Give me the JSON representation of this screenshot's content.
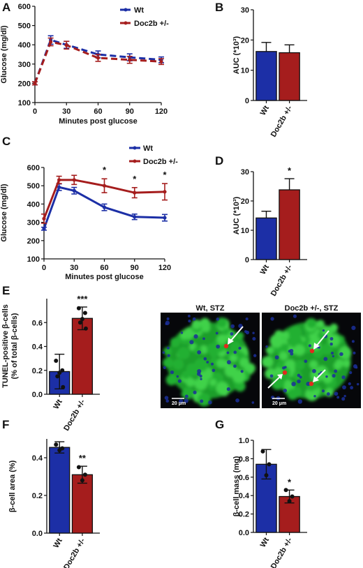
{
  "colors": {
    "wt": "#1c2fa6",
    "het": "#a51d1d",
    "axis": "#111111",
    "micro_bg": "#06070a",
    "micro_green": "#2fc43b",
    "micro_blue": "#1b2f9a"
  },
  "chart_data": [
    {
      "panel": "A",
      "type": "line",
      "x": [
        0,
        15,
        30,
        60,
        90,
        120
      ],
      "series": [
        {
          "name": "Wt",
          "values": [
            200,
            425,
            400,
            350,
            335,
            322
          ],
          "err": [
            8,
            22,
            18,
            18,
            18,
            15
          ],
          "color": "#1c2fa6"
        },
        {
          "name": "Doc2b +/-",
          "values": [
            200,
            415,
            398,
            332,
            322,
            313
          ],
          "err": [
            8,
            20,
            20,
            18,
            18,
            15
          ],
          "color": "#a51d1d"
        }
      ],
      "xlabel": "Minutes post glucose",
      "ylabel": "Glucose (mg/dl)",
      "xticks": [
        0,
        30,
        60,
        90,
        120
      ],
      "yticks": [
        100,
        200,
        300,
        400,
        500,
        600
      ],
      "xlim": [
        0,
        120
      ],
      "ylim": [
        100,
        600
      ],
      "dashed": true,
      "legend": "top-right"
    },
    {
      "panel": "B",
      "type": "bar",
      "categories": [
        "Wt",
        "Doc2b +/-"
      ],
      "values": [
        16.2,
        15.8
      ],
      "err": [
        3.0,
        2.6
      ],
      "colors": [
        "#1c2fa6",
        "#a51d1d"
      ],
      "ylabel": "AUC (*10³)",
      "yticks": [
        0,
        10,
        20,
        30
      ],
      "ylim": [
        0,
        30
      ]
    },
    {
      "panel": "C",
      "type": "line",
      "x": [
        0,
        15,
        30,
        60,
        90,
        120
      ],
      "series": [
        {
          "name": "Wt",
          "values": [
            265,
            492,
            473,
            382,
            330,
            325
          ],
          "err": [
            8,
            18,
            18,
            18,
            15,
            18
          ],
          "color": "#1c2fa6"
        },
        {
          "name": "Doc2b +/-",
          "values": [
            320,
            532,
            532,
            500,
            462,
            467
          ],
          "err": [
            25,
            20,
            25,
            38,
            28,
            45
          ],
          "color": "#a51d1d"
        }
      ],
      "xlabel": "Minutes post glucose",
      "ylabel": "Glucose (mg/dl)",
      "xticks": [
        0,
        30,
        60,
        90,
        120
      ],
      "yticks": [
        100,
        200,
        300,
        400,
        500,
        600
      ],
      "xlim": [
        0,
        120
      ],
      "ylim": [
        100,
        600
      ],
      "dashed": false,
      "legend": "top-right",
      "significance": [
        {
          "x": 60,
          "label": "*"
        },
        {
          "x": 90,
          "label": "*"
        },
        {
          "x": 120,
          "label": "*"
        }
      ]
    },
    {
      "panel": "D",
      "type": "bar",
      "categories": [
        "Wt",
        "Doc2b +/-"
      ],
      "values": [
        14.2,
        23.8
      ],
      "err": [
        2.3,
        3.8
      ],
      "colors": [
        "#1c2fa6",
        "#a51d1d"
      ],
      "ylabel": "AUC (*10³)",
      "yticks": [
        0,
        10,
        20,
        30
      ],
      "ylim": [
        0,
        30
      ],
      "significance": [
        {
          "index": 1,
          "label": "*"
        }
      ]
    },
    {
      "panel": "E",
      "type": "bar",
      "categories": [
        "Wt",
        "Doc2b +/-"
      ],
      "values": [
        0.19,
        0.635
      ],
      "err": [
        0.145,
        0.095
      ],
      "points": [
        [
          0.28,
          0.2,
          0.18,
          0.15,
          0.06
        ],
        [
          0.72,
          0.68,
          0.63,
          0.6,
          0.55
        ]
      ],
      "colors": [
        "#1c2fa6",
        "#a51d1d"
      ],
      "ylabel": "TUNEL-positive β-cells",
      "ylabel2": "(% of total β-cells)",
      "yticks": [
        0.0,
        0.2,
        0.4,
        0.6
      ],
      "ylim": [
        0,
        0.8
      ],
      "significance": [
        {
          "index": 1,
          "label": "***"
        }
      ]
    },
    {
      "panel": "F",
      "type": "bar",
      "categories": [
        "Wt",
        "Doc2b +/-"
      ],
      "values": [
        0.455,
        0.31
      ],
      "err": [
        0.03,
        0.045
      ],
      "points": [
        [
          0.47,
          0.45,
          0.44
        ],
        [
          0.35,
          0.31,
          0.28
        ]
      ],
      "colors": [
        "#1c2fa6",
        "#a51d1d"
      ],
      "ylabel": "β-cell area (%)",
      "yticks": [
        0.0,
        0.2,
        0.4
      ],
      "ylim": [
        0,
        0.5
      ],
      "significance": [
        {
          "index": 1,
          "label": "**"
        }
      ]
    },
    {
      "panel": "G",
      "type": "bar",
      "categories": [
        "Wt",
        "Doc2b +/-"
      ],
      "values": [
        0.74,
        0.39
      ],
      "err": [
        0.16,
        0.07
      ],
      "points": [
        [
          0.88,
          0.74,
          0.62
        ],
        [
          0.46,
          0.39,
          0.34
        ]
      ],
      "colors": [
        "#1c2fa6",
        "#a51d1d"
      ],
      "ylabel": "β-cell mass (mg)",
      "yticks": [
        0.0,
        0.2,
        0.4,
        0.6,
        0.8,
        1.0
      ],
      "ylim": [
        0,
        1.0
      ],
      "significance": [
        {
          "index": 1,
          "label": "*"
        }
      ]
    }
  ],
  "panel_letters": [
    "A",
    "B",
    "C",
    "D",
    "E",
    "F",
    "G"
  ],
  "micrographs": [
    {
      "title": "Wt, STZ",
      "scale_bar": "20 μm"
    },
    {
      "title": "Doc2b +/-, STZ",
      "scale_bar": "20 μm"
    }
  ]
}
